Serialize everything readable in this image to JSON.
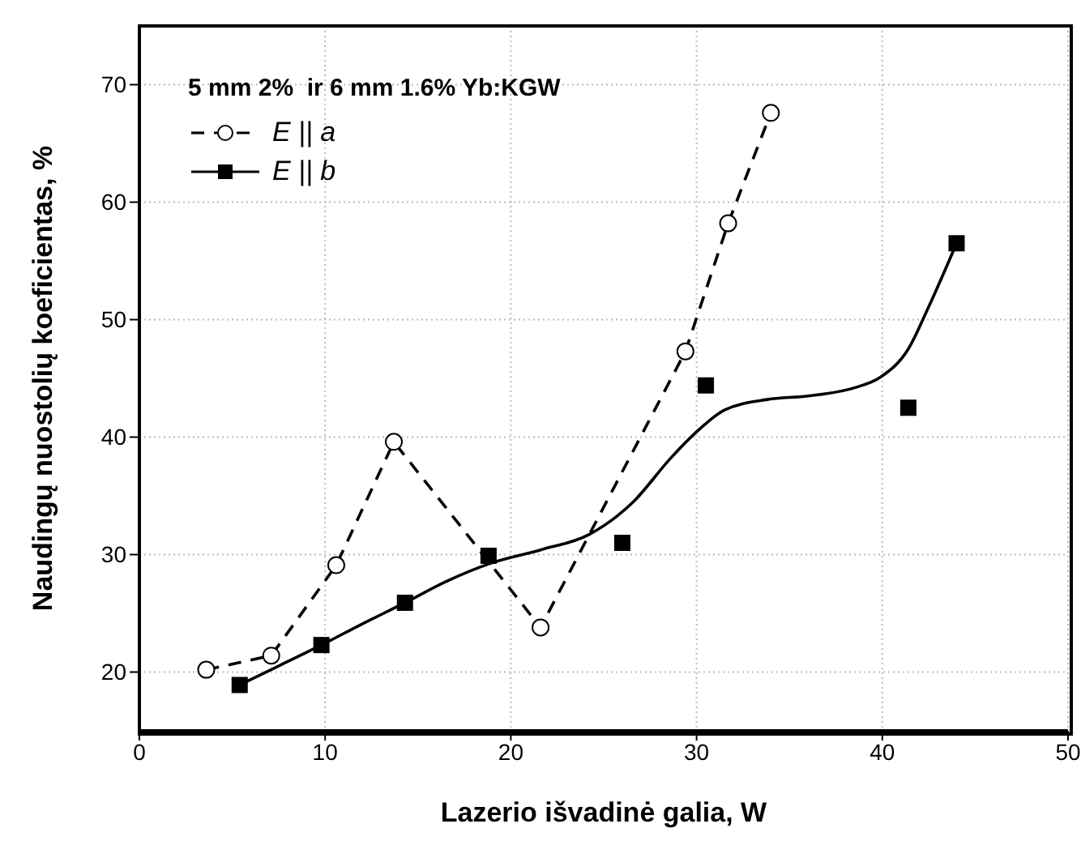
{
  "chart_data": {
    "type": "line",
    "xlabel": "Lazerio išvadinė galia, W",
    "ylabel": "Naudingų nuostolių koeficientas, %",
    "annotations": [
      "5 mm 2%  ir 6 mm 1.6% Yb:KGW"
    ],
    "xlim": [
      0,
      50
    ],
    "xticks": [
      0,
      10,
      20,
      30,
      40,
      50
    ],
    "ylim": [
      15,
      75
    ],
    "yticks": [
      20,
      30,
      40,
      50,
      60,
      70
    ],
    "grid": true,
    "legend": "top left",
    "series": [
      {
        "name": "E || a",
        "color": "#000000",
        "marker": "circle",
        "line_style": "dashed",
        "x": [
          3.6,
          7.1,
          10.6,
          13.7,
          21.6,
          29.4,
          31.7,
          34.0
        ],
        "values": [
          20.2,
          21.4,
          29.1,
          39.6,
          23.8,
          47.3,
          58.2,
          67.6
        ]
      },
      {
        "name": "E || b",
        "type": "scatter",
        "color": "#000000",
        "marker": "square",
        "x": [
          5.4,
          9.8,
          14.3,
          18.8,
          26.0,
          30.5,
          41.4,
          44.0
        ],
        "values": [
          18.9,
          22.3,
          25.9,
          29.9,
          31.0,
          44.4,
          42.5,
          56.5
        ]
      },
      {
        "type": "line",
        "color": "#000000",
        "marker": "none",
        "line_style": "solid",
        "x": [
          5.4,
          7.6,
          9.8,
          12.0,
          14.3,
          16.5,
          18.8,
          21.6,
          24.2,
          26.6,
          28.6,
          29.9,
          31.5,
          33.8,
          36.0,
          38.5,
          39.9,
          41.4,
          42.5,
          44.0
        ],
        "values": [
          18.9,
          20.6,
          22.3,
          24.1,
          25.9,
          27.7,
          29.2,
          30.4,
          31.7,
          34.5,
          38.2,
          40.3,
          42.3,
          43.2,
          43.5,
          44.2,
          45.1,
          47.5,
          51.1,
          56.5
        ]
      }
    ]
  }
}
